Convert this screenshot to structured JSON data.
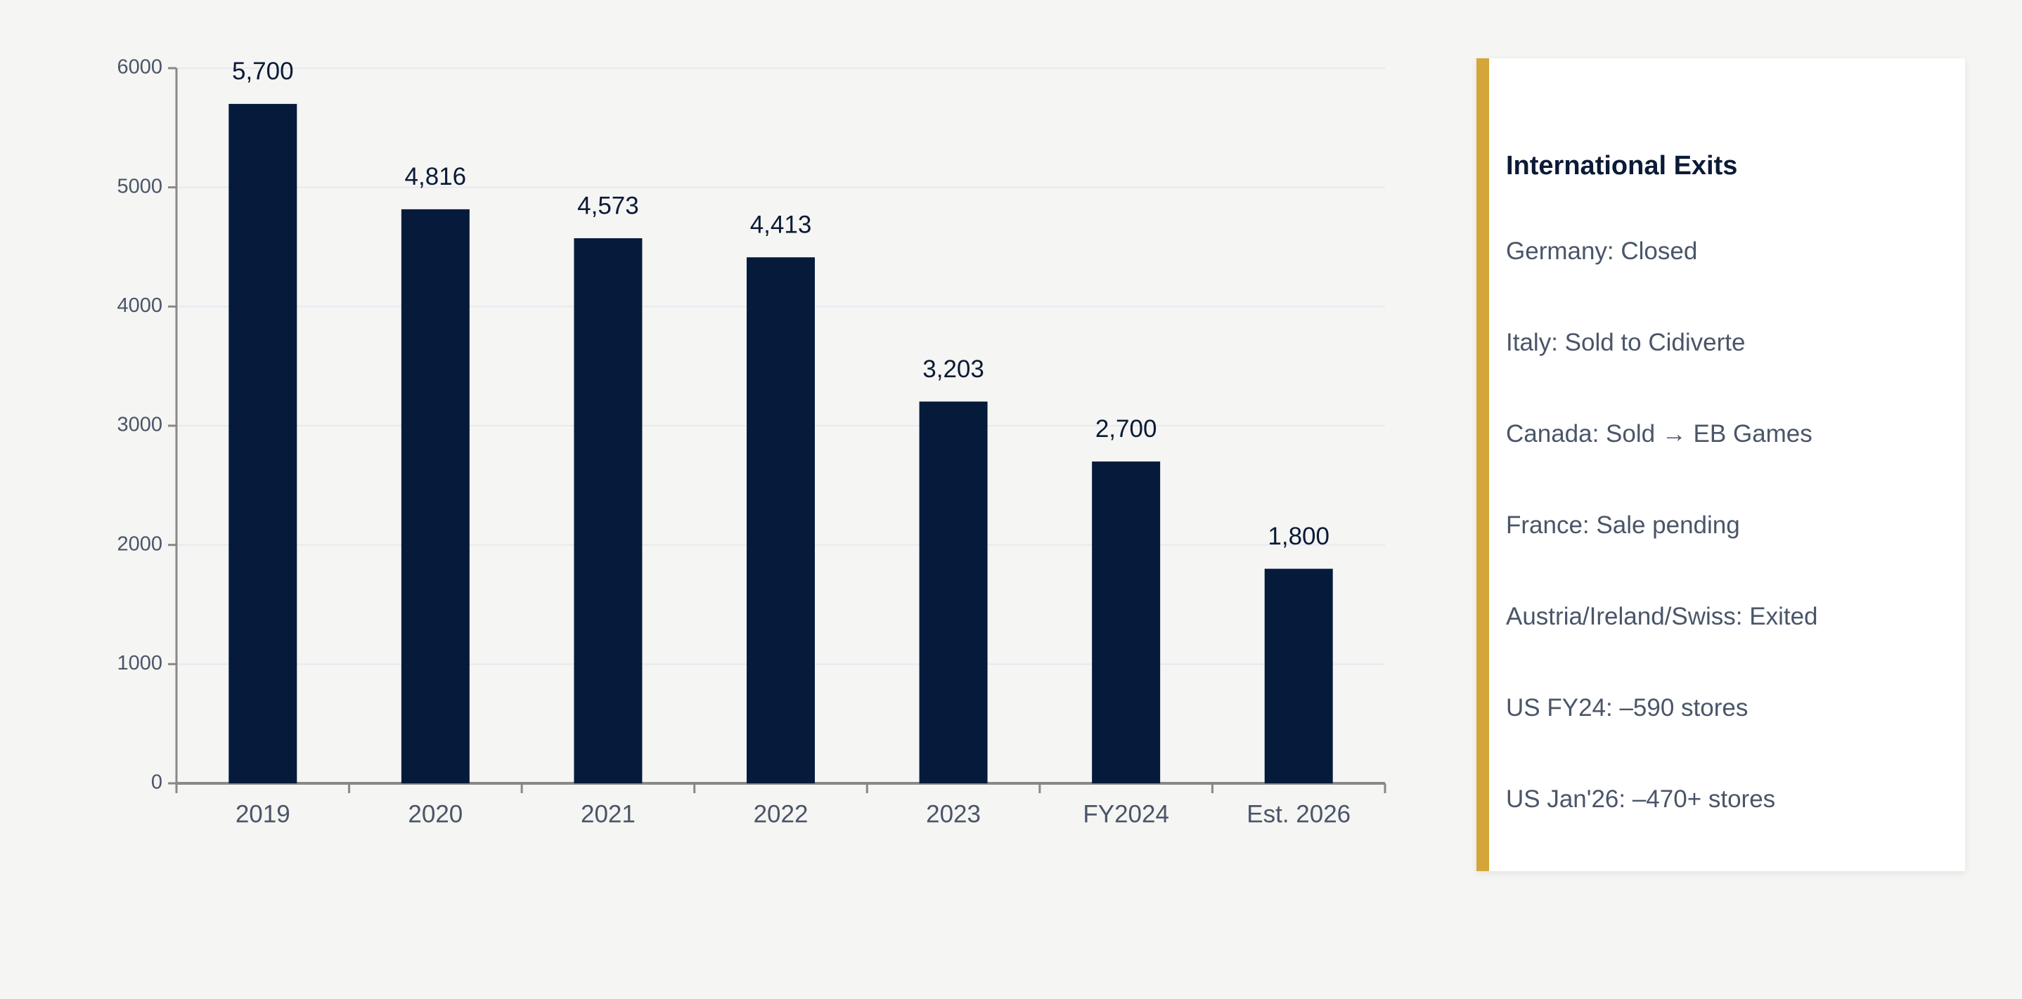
{
  "chart_data": {
    "type": "bar",
    "categories": [
      "2019",
      "2020",
      "2021",
      "2022",
      "2023",
      "FY2024",
      "Est. 2026"
    ],
    "values": [
      5700,
      4816,
      4573,
      4413,
      3203,
      2700,
      1800
    ],
    "value_labels": [
      "5,700",
      "4,816",
      "4,573",
      "4,413",
      "3,203",
      "2,700",
      "1,800"
    ],
    "color": "#061a3c",
    "ylim": [
      0,
      6000
    ],
    "yticks": [
      0,
      1000,
      2000,
      3000,
      4000,
      5000,
      6000
    ],
    "grid": true
  },
  "panel": {
    "title": "International Exits",
    "items": [
      "Germany: Closed",
      "Italy: Sold to Cidiverte",
      "Canada: Sold → EB Games",
      "France: Sale pending",
      "Austria/Ireland/Swiss: Exited",
      "US FY24: –590 stores",
      "US Jan'26: –470+ stores"
    ]
  }
}
